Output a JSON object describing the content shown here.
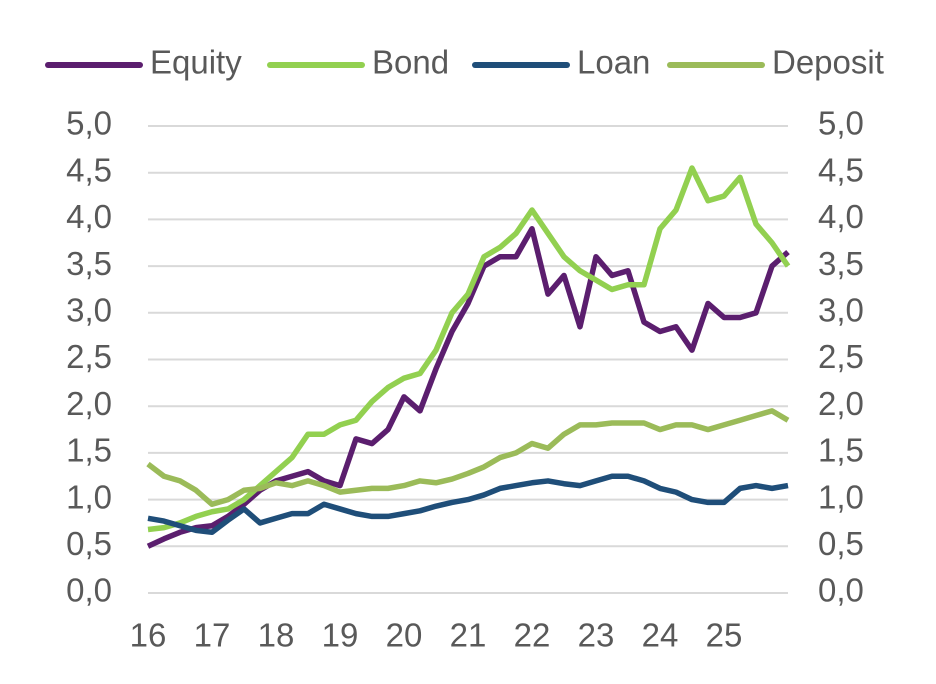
{
  "chart_data": {
    "type": "line",
    "x": [
      16,
      16.25,
      16.5,
      16.75,
      17,
      17.25,
      17.5,
      17.75,
      18,
      18.25,
      18.5,
      18.75,
      19,
      19.25,
      19.5,
      19.75,
      20,
      20.25,
      20.5,
      20.75,
      21,
      21.25,
      21.5,
      21.75,
      22,
      22.25,
      22.5,
      22.75,
      23,
      23.25,
      23.5,
      23.75,
      24,
      24.25,
      24.5,
      24.75,
      25,
      25.25,
      25.5,
      25.75,
      26
    ],
    "series": [
      {
        "name": "Equity",
        "color": "#5b1e6e",
        "values": [
          0.5,
          0.58,
          0.65,
          0.7,
          0.72,
          0.82,
          0.95,
          1.1,
          1.2,
          1.25,
          1.3,
          1.2,
          1.15,
          1.65,
          1.6,
          1.75,
          2.1,
          1.95,
          2.4,
          2.8,
          3.1,
          3.5,
          3.6,
          3.6,
          3.9,
          3.2,
          3.4,
          2.85,
          3.6,
          3.4,
          3.45,
          2.9,
          2.8,
          2.85,
          2.6,
          3.1,
          2.95,
          2.95,
          3.0,
          3.5,
          3.65
        ]
      },
      {
        "name": "Bond",
        "color": "#92d050",
        "values": [
          0.68,
          0.7,
          0.75,
          0.82,
          0.87,
          0.9,
          1.0,
          1.15,
          1.3,
          1.45,
          1.7,
          1.7,
          1.8,
          1.85,
          2.05,
          2.2,
          2.3,
          2.35,
          2.6,
          3.0,
          3.2,
          3.6,
          3.7,
          3.85,
          4.1,
          3.85,
          3.6,
          3.45,
          3.35,
          3.25,
          3.3,
          3.3,
          3.9,
          4.1,
          4.55,
          4.2,
          4.25,
          4.45,
          3.95,
          3.75,
          3.5
        ]
      },
      {
        "name": "Loan",
        "color": "#1f4e79",
        "values": [
          0.8,
          0.77,
          0.72,
          0.67,
          0.65,
          0.78,
          0.9,
          0.75,
          0.8,
          0.85,
          0.85,
          0.95,
          0.9,
          0.85,
          0.82,
          0.82,
          0.85,
          0.88,
          0.93,
          0.97,
          1.0,
          1.05,
          1.12,
          1.15,
          1.18,
          1.2,
          1.17,
          1.15,
          1.2,
          1.25,
          1.25,
          1.2,
          1.12,
          1.08,
          1.0,
          0.97,
          0.97,
          1.12,
          1.15,
          1.12,
          1.15
        ]
      },
      {
        "name": "Deposit",
        "color": "#9bbb59",
        "values": [
          1.38,
          1.25,
          1.2,
          1.1,
          0.95,
          1.0,
          1.1,
          1.12,
          1.18,
          1.15,
          1.2,
          1.15,
          1.08,
          1.1,
          1.12,
          1.12,
          1.15,
          1.2,
          1.18,
          1.22,
          1.28,
          1.35,
          1.45,
          1.5,
          1.6,
          1.55,
          1.7,
          1.8,
          1.8,
          1.82,
          1.82,
          1.82,
          1.75,
          1.8,
          1.8,
          1.75,
          1.8,
          1.85,
          1.9,
          1.95,
          1.85
        ]
      }
    ],
    "xlim": [
      16,
      26
    ],
    "xticks": [
      16,
      17,
      18,
      19,
      20,
      21,
      22,
      23,
      24,
      25
    ],
    "ylim": [
      0,
      5
    ],
    "yticks": [
      {
        "value": 0,
        "label": "0,0"
      },
      {
        "value": 0.5,
        "label": "0,5"
      },
      {
        "value": 1,
        "label": "1,0"
      },
      {
        "value": 1.5,
        "label": "1,5"
      },
      {
        "value": 2,
        "label": "2,0"
      },
      {
        "value": 2.5,
        "label": "2,5"
      },
      {
        "value": 3,
        "label": "3,0"
      },
      {
        "value": 3.5,
        "label": "3,5"
      },
      {
        "value": 4,
        "label": "4,0"
      },
      {
        "value": 4.5,
        "label": "4,5"
      },
      {
        "value": 5,
        "label": "5,0"
      }
    ],
    "y2lim": [
      0,
      5
    ],
    "y2ticks": [
      {
        "value": 0,
        "label": "0,0"
      },
      {
        "value": 0.5,
        "label": "0,5"
      },
      {
        "value": 1,
        "label": "1,0"
      },
      {
        "value": 1.5,
        "label": "1,5"
      },
      {
        "value": 2,
        "label": "2,0"
      },
      {
        "value": 2.5,
        "label": "2,5"
      },
      {
        "value": 3,
        "label": "3,0"
      },
      {
        "value": 3.5,
        "label": "3,5"
      },
      {
        "value": 4,
        "label": "4,0"
      },
      {
        "value": 4.5,
        "label": "4,5"
      },
      {
        "value": 5,
        "label": "5,0"
      }
    ],
    "grid": true,
    "legend": "top"
  }
}
